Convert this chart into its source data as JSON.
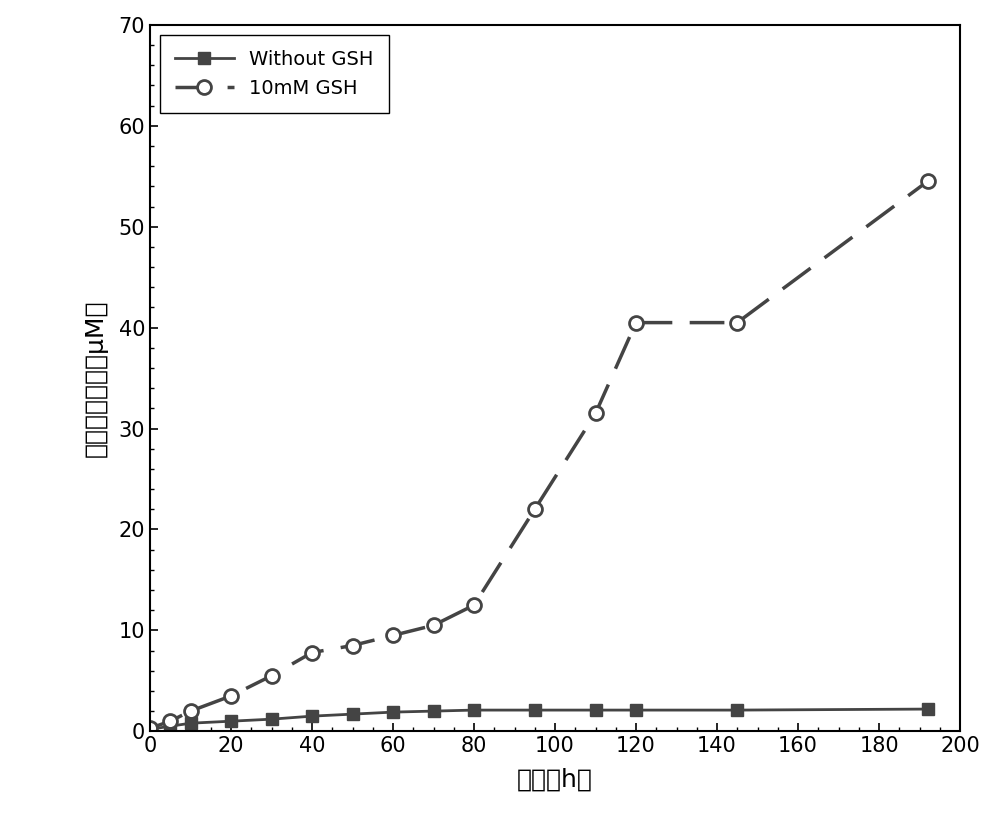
{
  "without_gsh_x": [
    0,
    5,
    10,
    20,
    30,
    40,
    50,
    60,
    70,
    80,
    95,
    110,
    120,
    145,
    192
  ],
  "without_gsh_y": [
    0.2,
    0.5,
    0.8,
    1.0,
    1.2,
    1.5,
    1.7,
    1.9,
    2.0,
    2.1,
    2.1,
    2.1,
    2.1,
    2.1,
    2.2
  ],
  "gsh_x": [
    0,
    5,
    10,
    20,
    30,
    40,
    50,
    60,
    70,
    80,
    95,
    110,
    120,
    145,
    192
  ],
  "gsh_y": [
    0.3,
    1.0,
    2.0,
    3.5,
    5.5,
    7.8,
    8.5,
    9.5,
    10.5,
    12.5,
    22.0,
    31.5,
    40.5,
    40.5,
    54.5
  ],
  "line1_color": "#444444",
  "line2_color": "#444444",
  "xlabel": "时间（h）",
  "ylabel": "一氧化氮浓度（μM）",
  "legend1": "Without GSH",
  "legend2": "10mM GSH",
  "xlim": [
    0,
    200
  ],
  "ylim": [
    0,
    70
  ],
  "xticks": [
    0,
    20,
    40,
    60,
    80,
    100,
    120,
    140,
    160,
    180,
    200
  ],
  "yticks": [
    0,
    10,
    20,
    30,
    40,
    50,
    60,
    70
  ],
  "label_fontsize": 18,
  "tick_fontsize": 15,
  "legend_fontsize": 14
}
